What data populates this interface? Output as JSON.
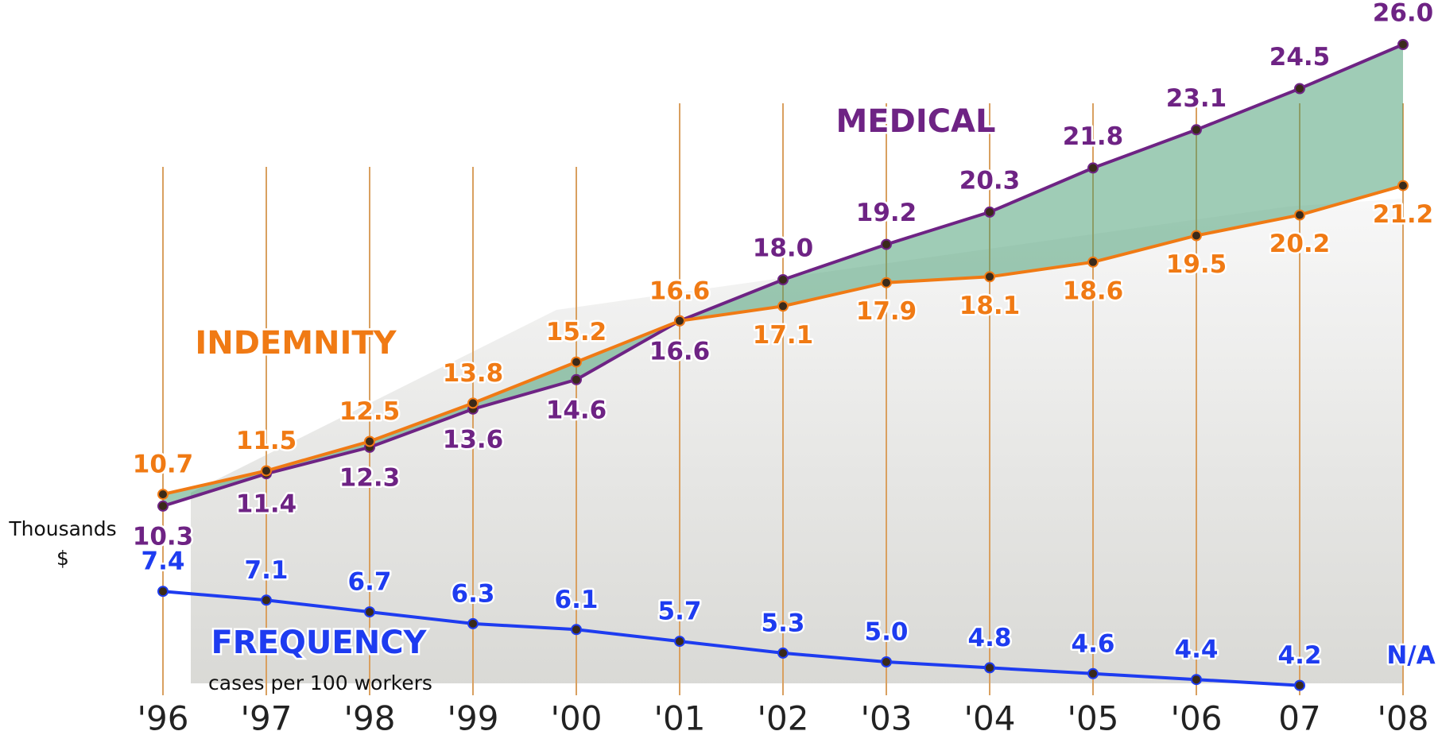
{
  "chart_data": {
    "type": "line",
    "categories": [
      "'96",
      "'97",
      "'98",
      "'99",
      "'00",
      "'01",
      "'02",
      "'03",
      "'04",
      "'05",
      "'06",
      "07",
      "'08"
    ],
    "y_label": [
      "Thousands",
      "$"
    ],
    "annotation": "cases per 100 workers",
    "ylim": [
      4,
      26
    ],
    "grid": false,
    "series": [
      {
        "name": "MEDICAL",
        "color": "#6e2384",
        "values": [
          10.3,
          11.4,
          12.3,
          13.6,
          14.6,
          16.6,
          18.0,
          19.2,
          20.3,
          21.8,
          23.1,
          24.5,
          26.0
        ],
        "value_labels": [
          "10.3",
          "11.4",
          "12.3",
          "13.6",
          "14.6",
          "16.6",
          "18.0",
          "19.2",
          "20.3",
          "21.8",
          "23.1",
          "24.5",
          "26.0"
        ]
      },
      {
        "name": "INDEMNITY",
        "color": "#f07a14",
        "values": [
          10.7,
          11.5,
          12.5,
          13.8,
          15.2,
          16.6,
          17.1,
          17.9,
          18.1,
          18.6,
          19.5,
          20.2,
          21.2
        ],
        "value_labels": [
          "10.7",
          "11.5",
          "12.5",
          "13.8",
          "15.2",
          "16.6",
          "17.1",
          "17.9",
          "18.1",
          "18.6",
          "19.5",
          "20.2",
          "21.2"
        ]
      },
      {
        "name": "FREQUENCY",
        "color": "#1e3cf0",
        "values": [
          7.4,
          7.1,
          6.7,
          6.3,
          6.1,
          5.7,
          5.3,
          5.0,
          4.8,
          4.6,
          4.4,
          4.2,
          null
        ],
        "value_labels": [
          "7.4",
          "7.1",
          "6.7",
          "6.3",
          "6.1",
          "5.7",
          "5.3",
          "5.0",
          "4.8",
          "4.6",
          "4.4",
          "4.2",
          "N/A"
        ]
      }
    ]
  }
}
